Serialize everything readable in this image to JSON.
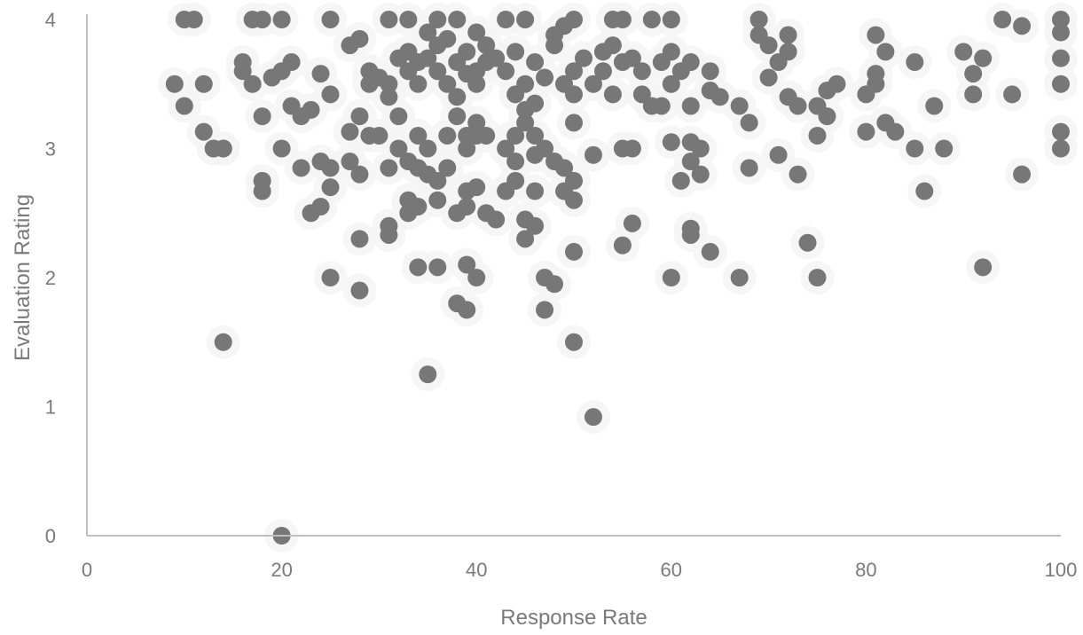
{
  "chart_data": {
    "type": "scatter",
    "title": "",
    "xlabel": "Response Rate",
    "ylabel": "Evaluation Rating",
    "xlim": [
      0,
      100
    ],
    "ylim": [
      0,
      4
    ],
    "xticks": [
      0,
      20,
      40,
      60,
      80,
      100
    ],
    "yticks": [
      0,
      1,
      2,
      3,
      4
    ],
    "grid": false,
    "legend": "none",
    "colors": {
      "point": "#777777",
      "axis": "#bfbfbf",
      "text": "#7a7a7a"
    },
    "series": [
      {
        "points": [
          [
            10,
            4
          ],
          [
            11,
            4
          ],
          [
            17,
            4
          ],
          [
            18,
            4
          ],
          [
            20,
            4
          ],
          [
            25,
            4
          ],
          [
            31,
            4
          ],
          [
            33,
            4
          ],
          [
            36,
            4
          ],
          [
            38,
            4
          ],
          [
            40,
            3.9
          ],
          [
            43,
            4
          ],
          [
            45,
            4
          ],
          [
            49,
            3.95
          ],
          [
            50,
            4
          ],
          [
            54,
            4
          ],
          [
            55,
            4
          ],
          [
            58,
            4
          ],
          [
            60,
            4
          ],
          [
            69,
            4
          ],
          [
            94,
            4
          ],
          [
            96,
            3.95
          ],
          [
            100,
            4
          ],
          [
            100,
            3.9
          ],
          [
            9,
            3.5
          ],
          [
            10,
            3.33
          ],
          [
            12,
            3.5
          ],
          [
            12,
            3.13
          ],
          [
            13,
            3
          ],
          [
            14,
            3
          ],
          [
            16,
            3.6
          ],
          [
            16,
            3.67
          ],
          [
            17,
            3.5
          ],
          [
            18,
            3.25
          ],
          [
            19,
            3.55
          ],
          [
            20,
            3.6
          ],
          [
            21,
            3.67
          ],
          [
            21,
            3.33
          ],
          [
            22,
            3.25
          ],
          [
            23,
            3.3
          ],
          [
            24,
            3.58
          ],
          [
            25,
            3.42
          ],
          [
            27,
            3.13
          ],
          [
            27,
            3.8
          ],
          [
            28,
            3.85
          ],
          [
            29,
            3.5
          ],
          [
            29,
            3.6
          ],
          [
            30,
            3.55
          ],
          [
            31,
            3.5
          ],
          [
            31,
            3.4
          ],
          [
            32,
            3.25
          ],
          [
            32,
            3.7
          ],
          [
            33,
            3.75
          ],
          [
            33,
            3.6
          ],
          [
            34,
            3.67
          ],
          [
            34,
            3.5
          ],
          [
            35,
            3.9
          ],
          [
            35,
            3.7
          ],
          [
            36,
            3.8
          ],
          [
            36,
            3.6
          ],
          [
            37,
            3.85
          ],
          [
            37,
            3.5
          ],
          [
            38,
            3.67
          ],
          [
            38,
            3.4
          ],
          [
            39,
            3.75
          ],
          [
            39,
            3.58
          ],
          [
            40,
            3.5
          ],
          [
            40,
            3.6
          ],
          [
            41,
            3.8
          ],
          [
            41,
            3.67
          ],
          [
            42,
            3.7
          ],
          [
            43,
            3.6
          ],
          [
            44,
            3.75
          ],
          [
            44,
            3.42
          ],
          [
            45,
            3.5
          ],
          [
            45,
            3.3
          ],
          [
            46,
            3.67
          ],
          [
            46,
            3.35
          ],
          [
            47,
            3.55
          ],
          [
            48,
            3.8
          ],
          [
            48,
            3.88
          ],
          [
            49,
            3.5
          ],
          [
            50,
            3.6
          ],
          [
            50,
            3.42
          ],
          [
            51,
            3.7
          ],
          [
            52,
            3.5
          ],
          [
            53,
            3.75
          ],
          [
            53,
            3.6
          ],
          [
            54,
            3.8
          ],
          [
            54,
            3.42
          ],
          [
            55,
            3.67
          ],
          [
            56,
            3.7
          ],
          [
            57,
            3.42
          ],
          [
            57,
            3.6
          ],
          [
            58,
            3.33
          ],
          [
            59,
            3.67
          ],
          [
            60,
            3.75
          ],
          [
            60,
            3.5
          ],
          [
            61,
            3.6
          ],
          [
            62,
            3.67
          ],
          [
            62,
            3.33
          ],
          [
            64,
            3.6
          ],
          [
            64,
            3.45
          ],
          [
            65,
            3.4
          ],
          [
            67,
            3.33
          ],
          [
            68,
            3.2
          ],
          [
            69,
            3.88
          ],
          [
            70,
            3.8
          ],
          [
            70,
            3.55
          ],
          [
            71,
            3.67
          ],
          [
            72,
            3.88
          ],
          [
            72,
            3.75
          ],
          [
            72,
            3.4
          ],
          [
            73,
            3.33
          ],
          [
            75,
            3.33
          ],
          [
            76,
            3.45
          ],
          [
            76,
            3.25
          ],
          [
            77,
            3.5
          ],
          [
            80,
            3.42
          ],
          [
            81,
            3.5
          ],
          [
            81,
            3.88
          ],
          [
            81,
            3.58
          ],
          [
            82,
            3.75
          ],
          [
            85,
            3.67
          ],
          [
            87,
            3.33
          ],
          [
            90,
            3.75
          ],
          [
            91,
            3.42
          ],
          [
            91,
            3.58
          ],
          [
            92,
            3.7
          ],
          [
            95,
            3.42
          ],
          [
            100,
            3.5
          ],
          [
            100,
            3.7
          ],
          [
            13,
            3
          ],
          [
            14,
            3
          ],
          [
            20,
            3
          ],
          [
            22,
            2.85
          ],
          [
            24,
            2.9
          ],
          [
            25,
            2.85
          ],
          [
            27,
            2.9
          ],
          [
            28,
            2.8
          ],
          [
            28,
            3.25
          ],
          [
            29,
            3.1
          ],
          [
            30,
            3.1
          ],
          [
            31,
            2.85
          ],
          [
            32,
            3
          ],
          [
            33,
            2.9
          ],
          [
            34,
            3.1
          ],
          [
            34,
            2.85
          ],
          [
            35,
            3
          ],
          [
            36,
            2.75
          ],
          [
            37,
            3.1
          ],
          [
            37,
            2.85
          ],
          [
            38,
            3.25
          ],
          [
            39,
            3.1
          ],
          [
            39,
            3
          ],
          [
            40,
            3.2
          ],
          [
            40,
            3.1
          ],
          [
            41,
            3.1
          ],
          [
            43,
            3
          ],
          [
            44,
            3.1
          ],
          [
            44,
            2.9
          ],
          [
            45,
            3.2
          ],
          [
            46,
            3.1
          ],
          [
            46,
            2.95
          ],
          [
            47,
            3
          ],
          [
            48,
            2.9
          ],
          [
            49,
            2.85
          ],
          [
            50,
            3.2
          ],
          [
            52,
            2.95
          ],
          [
            55,
            3
          ],
          [
            56,
            3
          ],
          [
            59,
            3.33
          ],
          [
            60,
            3.05
          ],
          [
            61,
            2.75
          ],
          [
            62,
            3.05
          ],
          [
            62,
            2.9
          ],
          [
            63,
            2.8
          ],
          [
            63,
            3
          ],
          [
            68,
            2.85
          ],
          [
            71,
            2.95
          ],
          [
            73,
            2.8
          ],
          [
            75,
            3.1
          ],
          [
            80,
            3.13
          ],
          [
            82,
            3.2
          ],
          [
            83,
            3.13
          ],
          [
            85,
            3
          ],
          [
            88,
            3
          ],
          [
            96,
            2.8
          ],
          [
            100,
            3
          ],
          [
            100,
            3.13
          ],
          [
            18,
            2.75
          ],
          [
            18,
            2.67
          ],
          [
            23,
            2.5
          ],
          [
            24,
            2.55
          ],
          [
            25,
            2.7
          ],
          [
            28,
            2.3
          ],
          [
            31,
            2.33
          ],
          [
            31,
            2.4
          ],
          [
            33,
            2.5
          ],
          [
            33,
            2.6
          ],
          [
            34,
            2.55
          ],
          [
            35,
            2.8
          ],
          [
            36,
            2.6
          ],
          [
            38,
            2.5
          ],
          [
            39,
            2.55
          ],
          [
            39,
            2.67
          ],
          [
            40,
            2.7
          ],
          [
            41,
            2.5
          ],
          [
            42,
            2.45
          ],
          [
            43,
            2.67
          ],
          [
            44,
            2.75
          ],
          [
            45,
            2.3
          ],
          [
            45,
            2.45
          ],
          [
            46,
            2.67
          ],
          [
            46,
            2.4
          ],
          [
            49,
            2.67
          ],
          [
            50,
            2.6
          ],
          [
            50,
            2.75
          ],
          [
            55,
            2.25
          ],
          [
            56,
            2.42
          ],
          [
            62,
            2.33
          ],
          [
            62,
            2.38
          ],
          [
            64,
            2.2
          ],
          [
            74,
            2.27
          ],
          [
            86,
            2.67
          ],
          [
            25,
            2
          ],
          [
            28,
            1.9
          ],
          [
            34,
            2.08
          ],
          [
            36,
            2.08
          ],
          [
            38,
            1.8
          ],
          [
            39,
            1.75
          ],
          [
            39,
            2.1
          ],
          [
            40,
            2
          ],
          [
            47,
            2
          ],
          [
            47,
            1.75
          ],
          [
            48,
            1.95
          ],
          [
            50,
            2.2
          ],
          [
            60,
            2
          ],
          [
            67,
            2
          ],
          [
            75,
            2
          ],
          [
            92,
            2.08
          ],
          [
            14,
            1.5
          ],
          [
            50,
            1.5
          ],
          [
            35,
            1.25
          ],
          [
            52,
            0.92
          ],
          [
            20,
            0
          ]
        ]
      }
    ]
  }
}
